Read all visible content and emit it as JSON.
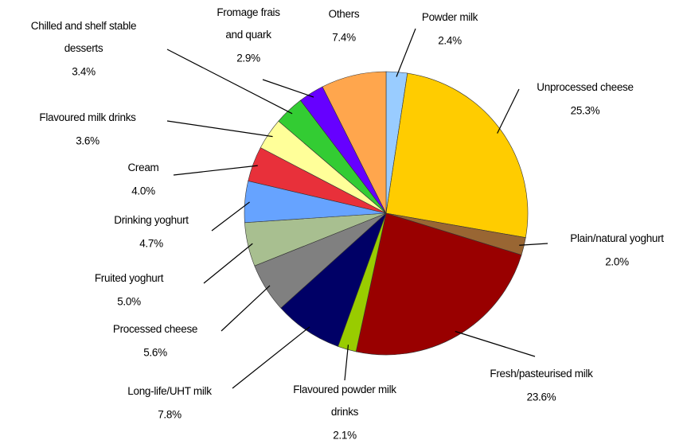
{
  "chart_data": {
    "type": "pie",
    "categories": [
      "Powder milk",
      "Unprocessed cheese",
      "Plain/natural yoghurt",
      "Fresh/pasteurised milk",
      "Flavoured powder milk\ndrinks",
      "Long-life/UHT milk",
      "Processed cheese",
      "Fruited yoghurt",
      "Drinking yoghurt",
      "Cream",
      "Flavoured milk drinks",
      "Chilled and shelf stable\ndesserts",
      "Fromage frais\nand quark",
      "Others"
    ],
    "values": [
      2.4,
      25.3,
      2.0,
      23.6,
      2.1,
      7.8,
      5.6,
      5.0,
      4.7,
      4.0,
      3.6,
      3.4,
      2.9,
      7.4
    ],
    "value_labels": [
      "2.4%",
      "25.3%",
      "2.0%",
      "23.6%",
      "2.1%",
      "7.8%",
      "5.6%",
      "5.0%",
      "4.7%",
      "4.0%",
      "3.6%",
      "3.4%",
      "2.9%",
      "7.4%"
    ],
    "colors": [
      "#99ccff",
      "#ffcc00",
      "#996633",
      "#990000",
      "#99cc00",
      "#000066",
      "#808080",
      "#a8bf90",
      "#66a3ff",
      "#e8303a",
      "#ffff99",
      "#33cc33",
      "#6600ff",
      "#ffa64d"
    ]
  }
}
